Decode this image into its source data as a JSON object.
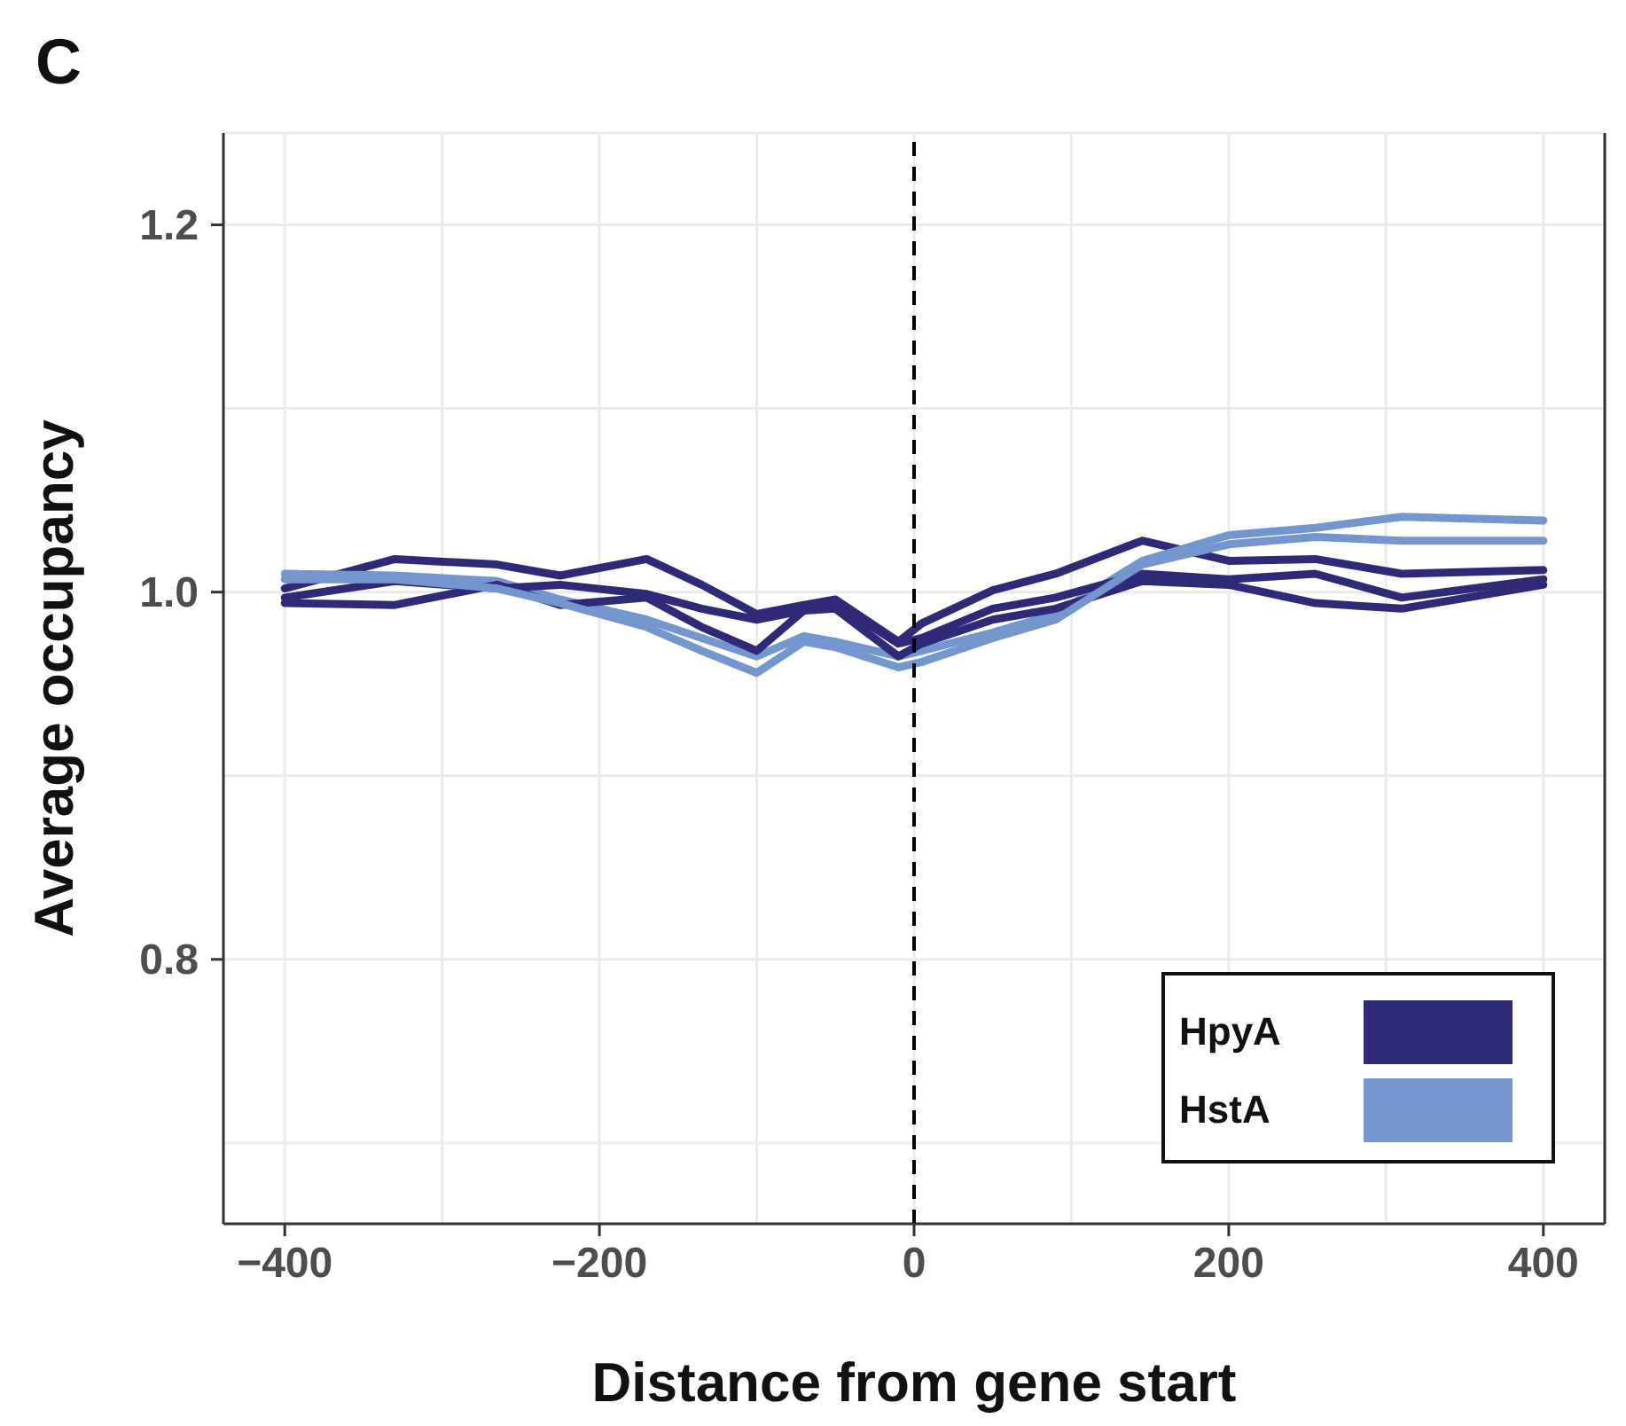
{
  "chart_data": {
    "type": "line",
    "xlabel": "Distance from gene start",
    "ylabel": "Average occupancy",
    "annotations": [
      "C"
    ],
    "x": [
      -400,
      -330,
      -265,
      -225,
      -170,
      -135,
      -100,
      -70,
      -50,
      -10,
      5,
      50,
      90,
      145,
      200,
      255,
      310,
      400
    ],
    "series": [
      {
        "name": "HpyA",
        "color": "#2e2a78",
        "values": [
          1.002,
          1.018,
          1.015,
          1.009,
          1.018,
          1.004,
          0.988,
          0.993,
          0.996,
          0.973,
          0.983,
          1.001,
          1.01,
          1.028,
          1.017,
          1.018,
          1.01,
          1.012
        ]
      },
      {
        "name": "HstA",
        "color": "#7496cf",
        "values": [
          1.01,
          1.009,
          1.006,
          0.996,
          0.985,
          0.975,
          0.965,
          0.976,
          0.973,
          0.965,
          0.968,
          0.978,
          0.988,
          1.017,
          1.031,
          1.035,
          1.041,
          1.039
        ]
      },
      {
        "color": "#2e2a78",
        "values": [
          0.997,
          1.006,
          1.002,
          1.004,
          0.999,
          0.991,
          0.985,
          0.99,
          0.994,
          0.972,
          0.975,
          0.991,
          0.997,
          1.01,
          1.007,
          1.01,
          0.997,
          1.007
        ]
      },
      {
        "color": "#2e2a78",
        "values": [
          0.994,
          0.993,
          1.004,
          0.993,
          0.997,
          0.981,
          0.968,
          0.99,
          0.991,
          0.965,
          0.972,
          0.985,
          0.991,
          1.006,
          1.004,
          0.994,
          0.991,
          1.004
        ]
      },
      {
        "color": "#7496cf",
        "values": [
          1.007,
          1.007,
          1.002,
          0.994,
          0.981,
          0.968,
          0.956,
          0.973,
          0.97,
          0.959,
          0.962,
          0.975,
          0.985,
          1.015,
          1.026,
          1.03,
          1.028,
          1.028
        ]
      }
    ],
    "xlim": [
      -439,
      439
    ],
    "ylim": [
      0.656,
      1.25
    ],
    "xticks": [
      -400,
      {
        "value": -300,
        "label": null
      },
      -200,
      {
        "value": -100,
        "label": null
      },
      0,
      {
        "value": 100,
        "label": null
      },
      200,
      {
        "value": 300,
        "label": null
      },
      400
    ],
    "yticks": [
      {
        "value": 0.7,
        "label": null
      },
      0.8,
      {
        "value": 0.9,
        "label": null
      },
      {
        "value": 1,
        "label": "1.0"
      },
      {
        "value": 1.1,
        "label": null
      },
      1.2
    ],
    "ref_lines": [
      {
        "axis": "x",
        "value": 0,
        "color": "#000000",
        "line_style": "dashed"
      }
    ],
    "grid": true,
    "legend": "bottom right"
  }
}
